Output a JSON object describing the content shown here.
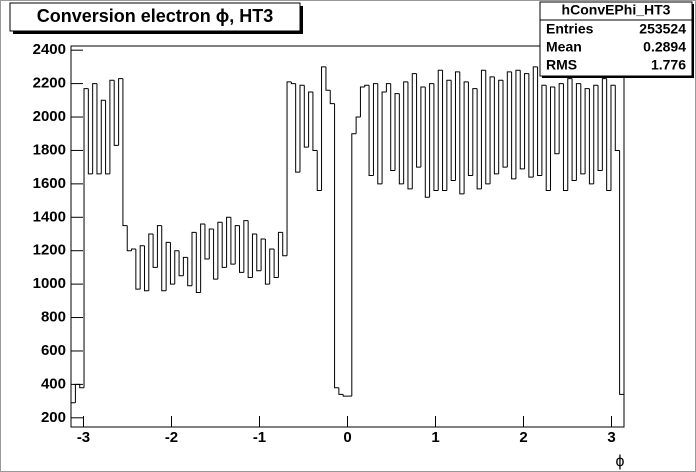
{
  "chart_data": {
    "type": "histogram",
    "title": "Conversion electron ϕ, HT3",
    "xlabel": "ϕ",
    "stats": {
      "name": "hConvEPhi_HT3",
      "rows": [
        [
          "Entries",
          "253524"
        ],
        [
          "Mean",
          "0.2894"
        ],
        [
          "RMS",
          "1.776"
        ]
      ]
    },
    "color": "#000000",
    "bins": [
      -3.142,
      -3.092,
      -3.043,
      -2.994,
      -2.945,
      -2.896,
      -2.847,
      -2.798,
      -2.749,
      -2.7,
      -2.651,
      -2.601,
      -2.552,
      -2.503,
      -2.454,
      -2.405,
      -2.356,
      -2.307,
      -2.258,
      -2.209,
      -2.16,
      -2.111,
      -2.061,
      -2.012,
      -1.963,
      -1.914,
      -1.865,
      -1.816,
      -1.767,
      -1.718,
      -1.669,
      -1.62,
      -1.571,
      -1.522,
      -1.473,
      -1.424,
      -1.374,
      -1.325,
      -1.276,
      -1.227,
      -1.178,
      -1.129,
      -1.08,
      -1.031,
      -0.982,
      -0.933,
      -0.884,
      -0.834,
      -0.785,
      -0.736,
      -0.687,
      -0.638,
      -0.589,
      -0.54,
      -0.491,
      -0.442,
      -0.393,
      -0.344,
      -0.295,
      -0.245,
      -0.196,
      -0.147,
      -0.098,
      -0.049,
      0,
      0.049,
      0.098,
      0.147,
      0.196,
      0.245,
      0.295,
      0.344,
      0.393,
      0.442,
      0.491,
      0.54,
      0.589,
      0.638,
      0.687,
      0.736,
      0.785,
      0.834,
      0.884,
      0.933,
      0.982,
      1.031,
      1.08,
      1.129,
      1.178,
      1.227,
      1.276,
      1.325,
      1.374,
      1.424,
      1.473,
      1.522,
      1.571,
      1.62,
      1.669,
      1.718,
      1.767,
      1.816,
      1.865,
      1.914,
      1.963,
      2.012,
      2.061,
      2.111,
      2.16,
      2.209,
      2.258,
      2.307,
      2.356,
      2.405,
      2.454,
      2.503,
      2.552,
      2.601,
      2.651,
      2.7,
      2.749,
      2.798,
      2.847,
      2.896,
      2.945,
      2.994,
      3.043,
      3.092,
      3.142
    ],
    "values": [
      290,
      400,
      380,
      2170,
      1660,
      2200,
      1660,
      2100,
      1660,
      2220,
      1830,
      2230,
      1350,
      1200,
      1210,
      970,
      1230,
      960,
      1300,
      1100,
      1350,
      960,
      1250,
      1000,
      1200,
      1050,
      1160,
      990,
      1310,
      950,
      1360,
      1150,
      1330,
      1030,
      1370,
      1100,
      1400,
      1120,
      1350,
      1070,
      1380,
      1040,
      1300,
      1080,
      1270,
      1000,
      1210,
      1040,
      1310,
      1170,
      2210,
      2200,
      1670,
      2190,
      1820,
      2150,
      1800,
      1560,
      2300,
      2160,
      2080,
      380,
      340,
      330,
      330,
      1900,
      2000,
      2180,
      2190,
      1650,
      2200,
      1600,
      2150,
      2200,
      1680,
      2140,
      1600,
      2210,
      1570,
      2260,
      1700,
      2180,
      1520,
      2200,
      1560,
      2280,
      1560,
      2220,
      1620,
      2270,
      1540,
      2210,
      1650,
      2170,
      1570,
      2280,
      1600,
      2240,
      1660,
      2220,
      1700,
      2270,
      1630,
      2280,
      1690,
      2260,
      1640,
      2300,
      1650,
      2190,
      1560,
      2180,
      1780,
      2200,
      1560,
      2230,
      1620,
      2200,
      1660,
      2170,
      1600,
      2190,
      1680,
      2230,
      1560,
      2190,
      1800,
      340
    ],
    "xlim": [
      -3.142,
      3.142
    ],
    "xticks": [
      -3,
      -2,
      -1,
      0,
      1,
      2,
      3
    ],
    "ylim": [
      145,
      2425
    ],
    "yticks": [
      200,
      400,
      600,
      800,
      1000,
      1200,
      1400,
      1600,
      1800,
      2000,
      2200,
      2400
    ]
  }
}
